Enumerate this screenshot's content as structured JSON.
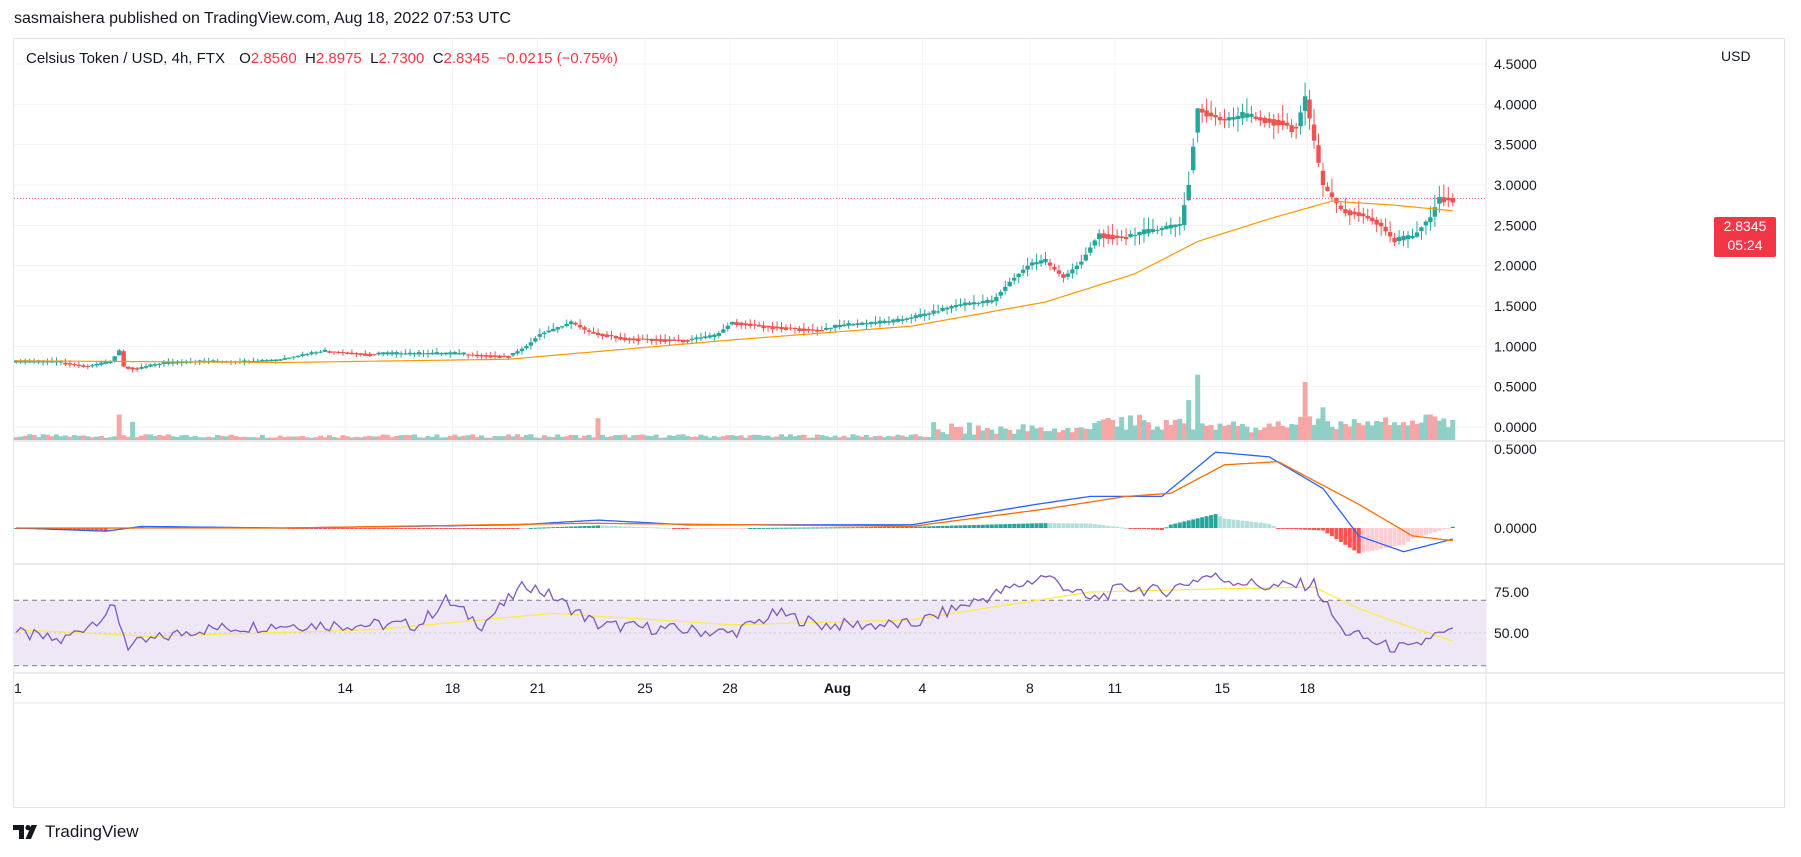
{
  "header": {
    "published": "sasmaishera published on TradingView.com, Aug 18, 2022 07:53 UTC"
  },
  "legend": {
    "symbol": "Celsius Token / USD, 4h, FTX",
    "o_label": "O",
    "o": "2.8560",
    "h_label": "H",
    "h": "2.8975",
    "l_label": "L",
    "l": "2.7300",
    "c_label": "C",
    "c": "2.8345",
    "change": "−0.0215 (−0.75%)"
  },
  "price_axis": {
    "currency": "USD",
    "last_price": "2.8345",
    "countdown": "05:24"
  },
  "brand": {
    "name": "TradingView"
  },
  "colors": {
    "up": "#26a69a",
    "down": "#ef5350",
    "ma": "#ff9800",
    "macd": "#2962ff",
    "signal": "#ff6d00",
    "rsi": "#7e57c2",
    "rsi_ma": "#ffeb3b",
    "rsi_band": "#ede7f6"
  },
  "chart_data": [
    {
      "type": "candlestick",
      "pane": "price",
      "x_ticks": [
        "1",
        "14",
        "18",
        "21",
        "25",
        "28",
        "Aug",
        "4",
        "8",
        "11",
        "15",
        "18"
      ],
      "y_ticks": [
        "0.0000",
        "0.5000",
        "1.0000",
        "1.5000",
        "2.0000",
        "2.5000",
        "3.0000",
        "3.5000",
        "4.0000",
        "4.5000"
      ],
      "ylim": [
        0,
        4.6
      ],
      "last_close": 2.8345,
      "close_path": [
        [
          0,
          0.8
        ],
        [
          10,
          0.8
        ],
        [
          16,
          0.75
        ],
        [
          21,
          0.8
        ],
        [
          23,
          0.95
        ],
        [
          24,
          0.75
        ],
        [
          27,
          0.72
        ],
        [
          32,
          0.78
        ],
        [
          40,
          0.8
        ],
        [
          50,
          0.8
        ],
        [
          58,
          0.82
        ],
        [
          63,
          0.88
        ],
        [
          69,
          0.94
        ],
        [
          80,
          0.9
        ],
        [
          100,
          0.9
        ],
        [
          110,
          0.88
        ],
        [
          114,
          1.0
        ],
        [
          117,
          1.15
        ],
        [
          120,
          1.2
        ],
        [
          124,
          1.3
        ],
        [
          128,
          1.18
        ],
        [
          136,
          1.1
        ],
        [
          150,
          1.08
        ],
        [
          156,
          1.12
        ],
        [
          160,
          1.3
        ],
        [
          168,
          1.25
        ],
        [
          180,
          1.2
        ],
        [
          184,
          1.25
        ],
        [
          196,
          1.3
        ],
        [
          204,
          1.4
        ],
        [
          210,
          1.5
        ],
        [
          218,
          1.55
        ],
        [
          222,
          1.8
        ],
        [
          226,
          2.0
        ],
        [
          230,
          2.05
        ],
        [
          234,
          1.85
        ],
        [
          238,
          2.05
        ],
        [
          242,
          2.4
        ],
        [
          248,
          2.35
        ],
        [
          256,
          2.45
        ],
        [
          260,
          2.5
        ],
        [
          262,
          3.0
        ],
        [
          264,
          3.95
        ],
        [
          270,
          3.8
        ],
        [
          276,
          3.85
        ],
        [
          282,
          3.8
        ],
        [
          286,
          3.7
        ],
        [
          288,
          4.1
        ],
        [
          292,
          3.0
        ],
        [
          296,
          2.7
        ],
        [
          300,
          2.65
        ],
        [
          304,
          2.55
        ],
        [
          308,
          2.3
        ],
        [
          312,
          2.35
        ],
        [
          316,
          2.6
        ],
        [
          318,
          2.85
        ],
        [
          321,
          2.8345
        ]
      ],
      "moving_average": [
        [
          0,
          0.82
        ],
        [
          60,
          0.8
        ],
        [
          110,
          0.84
        ],
        [
          160,
          1.08
        ],
        [
          200,
          1.25
        ],
        [
          230,
          1.55
        ],
        [
          250,
          1.9
        ],
        [
          264,
          2.3
        ],
        [
          280,
          2.58
        ],
        [
          294,
          2.8
        ],
        [
          308,
          2.75
        ],
        [
          321,
          2.68
        ]
      ],
      "volume_spikes": [
        [
          23,
          0.35
        ],
        [
          26,
          0.25
        ],
        [
          130,
          0.3
        ],
        [
          262,
          0.55
        ],
        [
          264,
          0.9
        ],
        [
          288,
          0.8
        ],
        [
          292,
          0.45
        ]
      ]
    },
    {
      "type": "line",
      "pane": "macd",
      "y_ticks": [
        "0.5000",
        "0.0000"
      ],
      "ylim": [
        -0.2,
        0.55
      ],
      "series": [
        {
          "name": "",
          "values": [
            [
              0,
              0
            ],
            [
              20,
              -0.02
            ],
            [
              28,
              0.01
            ],
            [
              60,
              0.0
            ],
            [
              112,
              0.02
            ],
            [
              130,
              0.05
            ],
            [
              150,
              0.02
            ],
            [
              200,
              0.02
            ],
            [
              228,
              0.15
            ],
            [
              240,
              0.2
            ],
            [
              256,
              0.2
            ],
            [
              268,
              0.48
            ],
            [
              280,
              0.45
            ],
            [
              292,
              0.25
            ],
            [
              300,
              -0.05
            ],
            [
              310,
              -0.15
            ],
            [
              321,
              -0.07
            ]
          ]
        },
        {
          "name": "",
          "values": [
            [
              0,
              0
            ],
            [
              60,
              0.0
            ],
            [
              128,
              0.03
            ],
            [
              200,
              0.01
            ],
            [
              230,
              0.12
            ],
            [
              248,
              0.2
            ],
            [
              258,
              0.22
            ],
            [
              270,
              0.4
            ],
            [
              282,
              0.42
            ],
            [
              300,
              0.15
            ],
            [
              312,
              -0.05
            ],
            [
              321,
              -0.08
            ]
          ]
        }
      ]
    },
    {
      "type": "line",
      "pane": "rsi",
      "y_ticks": [
        "75.00",
        "50.00"
      ],
      "ylim": [
        25,
        95
      ],
      "band": [
        30,
        70
      ],
      "series": [
        {
          "name": "",
          "values": [
            [
              0,
              50
            ],
            [
              10,
              45
            ],
            [
              22,
              65
            ],
            [
              25,
              42
            ],
            [
              40,
              52
            ],
            [
              60,
              55
            ],
            [
              90,
              55
            ],
            [
              96,
              70
            ],
            [
              104,
              55
            ],
            [
              114,
              80
            ],
            [
              120,
              72
            ],
            [
              124,
              65
            ],
            [
              130,
              55
            ],
            [
              160,
              50
            ],
            [
              170,
              62
            ],
            [
              180,
              55
            ],
            [
              200,
              55
            ],
            [
              210,
              65
            ],
            [
              230,
              85
            ],
            [
              240,
              70
            ],
            [
              248,
              78
            ],
            [
              256,
              75
            ],
            [
              266,
              85
            ],
            [
              280,
              78
            ],
            [
              290,
              80
            ],
            [
              296,
              52
            ],
            [
              306,
              42
            ],
            [
              312,
              40
            ],
            [
              316,
              48
            ],
            [
              321,
              50
            ]
          ]
        },
        {
          "name": "",
          "values": [
            [
              0,
              52
            ],
            [
              30,
              48
            ],
            [
              80,
              52
            ],
            [
              120,
              62
            ],
            [
              160,
              55
            ],
            [
              200,
              58
            ],
            [
              240,
              75
            ],
            [
              270,
              77
            ],
            [
              290,
              78
            ],
            [
              300,
              65
            ],
            [
              310,
              55
            ],
            [
              321,
              45
            ]
          ]
        }
      ]
    }
  ]
}
